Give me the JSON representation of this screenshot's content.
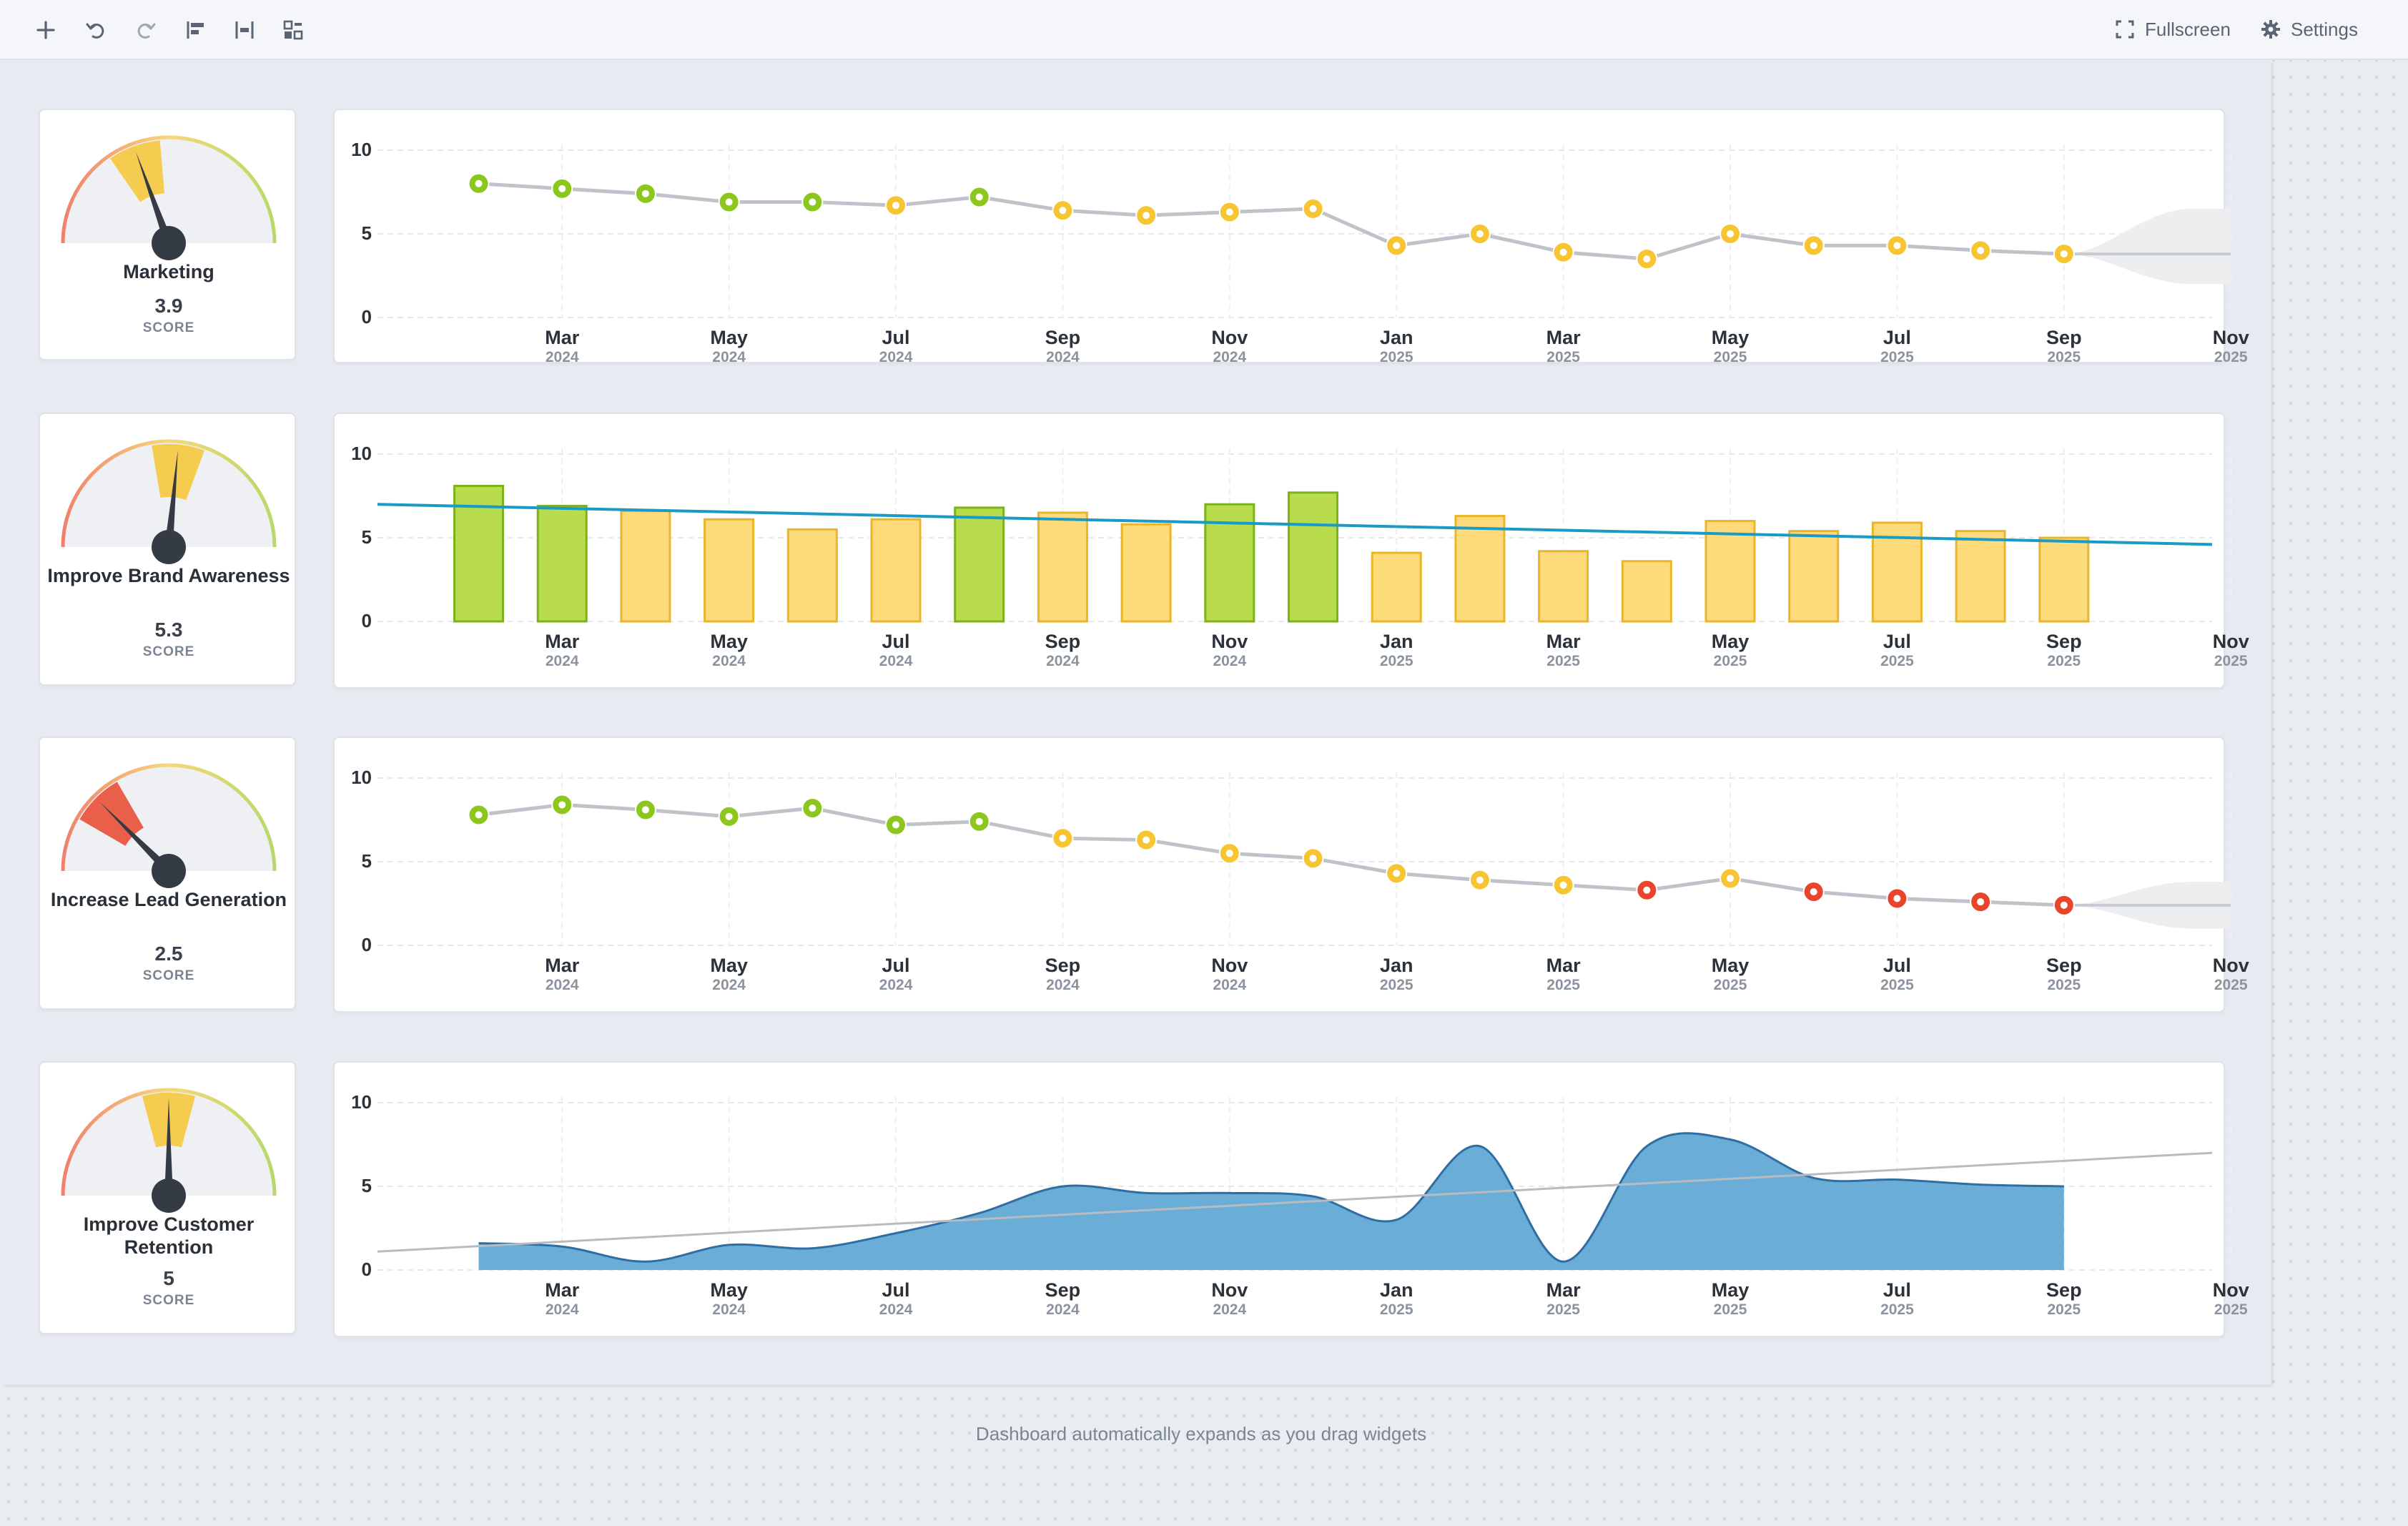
{
  "toolbar": {
    "left_icons": [
      "plus-icon",
      "undo-icon",
      "redo-icon",
      "align-left-icon",
      "distribute-icon",
      "layout-icon"
    ],
    "fullscreen_label": "Fullscreen",
    "settings_label": "Settings"
  },
  "footer": {
    "note": "Dashboard automatically expands as you drag widgets"
  },
  "colors": {
    "green": "#8cc71e",
    "yellow": "#f6c531",
    "red": "#e8452c",
    "trend": "#1a9bc7",
    "area": "#6aaed8"
  },
  "gauges": [
    {
      "name": "Marketing",
      "score": "3.9",
      "score_label": "SCORE"
    },
    {
      "name": "Improve Brand Awareness",
      "score": "5.3",
      "score_label": "SCORE"
    },
    {
      "name": "Increase Lead Generation",
      "score": "2.5",
      "score_label": "SCORE"
    },
    {
      "name": "Improve Customer Retention",
      "score": "5",
      "score_label": "SCORE"
    }
  ],
  "chart_data": [
    {
      "type": "line",
      "title": "",
      "ylim": [
        0,
        10
      ],
      "yticks": [
        0,
        5,
        10
      ],
      "x_ticks": [
        {
          "month": "Mar",
          "year": "2024"
        },
        {
          "month": "May",
          "year": "2024"
        },
        {
          "month": "Jul",
          "year": "2024"
        },
        {
          "month": "Sep",
          "year": "2024"
        },
        {
          "month": "Nov",
          "year": "2024"
        },
        {
          "month": "Jan",
          "year": "2025"
        },
        {
          "month": "Mar",
          "year": "2025"
        },
        {
          "month": "May",
          "year": "2025"
        },
        {
          "month": "Jul",
          "year": "2025"
        },
        {
          "month": "Sep",
          "year": "2025"
        },
        {
          "month": "Nov",
          "year": "2025"
        }
      ],
      "x": [
        "2024-02",
        "2024-03",
        "2024-04",
        "2024-05",
        "2024-06",
        "2024-07",
        "2024-08",
        "2024-09",
        "2024-10",
        "2024-11",
        "2024-12",
        "2025-01",
        "2025-02",
        "2025-03",
        "2025-04",
        "2025-05",
        "2025-06",
        "2025-07",
        "2025-08",
        "2025-09"
      ],
      "values": [
        8.0,
        7.7,
        7.4,
        6.9,
        6.9,
        6.7,
        7.2,
        6.4,
        6.1,
        6.3,
        6.5,
        4.3,
        5.0,
        3.9,
        3.5,
        5.0,
        4.3,
        4.3,
        4.0,
        3.8
      ],
      "status": [
        "green",
        "green",
        "green",
        "green",
        "green",
        "yellow",
        "green",
        "yellow",
        "yellow",
        "yellow",
        "yellow",
        "yellow",
        "yellow",
        "yellow",
        "yellow",
        "yellow",
        "yellow",
        "yellow",
        "yellow",
        "yellow"
      ],
      "forecast": {
        "x": [
          "2025-09",
          "2025-11"
        ],
        "value": 3.8,
        "band": [
          2.0,
          6.5
        ]
      },
      "grid": true
    },
    {
      "type": "bar",
      "title": "",
      "ylim": [
        0,
        10
      ],
      "yticks": [
        0,
        5,
        10
      ],
      "x_ticks": [
        {
          "month": "Mar",
          "year": "2024"
        },
        {
          "month": "May",
          "year": "2024"
        },
        {
          "month": "Jul",
          "year": "2024"
        },
        {
          "month": "Sep",
          "year": "2024"
        },
        {
          "month": "Nov",
          "year": "2024"
        },
        {
          "month": "Jan",
          "year": "2025"
        },
        {
          "month": "Mar",
          "year": "2025"
        },
        {
          "month": "May",
          "year": "2025"
        },
        {
          "month": "Jul",
          "year": "2025"
        },
        {
          "month": "Sep",
          "year": "2025"
        },
        {
          "month": "Nov",
          "year": "2025"
        }
      ],
      "x": [
        "2024-02",
        "2024-03",
        "2024-04",
        "2024-05",
        "2024-06",
        "2024-07",
        "2024-08",
        "2024-09",
        "2024-10",
        "2024-11",
        "2024-12",
        "2025-01",
        "2025-02",
        "2025-03",
        "2025-04",
        "2025-05",
        "2025-06",
        "2025-07",
        "2025-08",
        "2025-09"
      ],
      "values": [
        8.1,
        6.9,
        6.6,
        6.1,
        5.5,
        6.1,
        6.8,
        6.5,
        5.8,
        7.0,
        7.7,
        4.1,
        6.3,
        4.2,
        3.6,
        6.0,
        5.4,
        5.9,
        5.4,
        5.0
      ],
      "status": [
        "green",
        "green",
        "yellow",
        "yellow",
        "yellow",
        "yellow",
        "green",
        "yellow",
        "yellow",
        "green",
        "green",
        "yellow",
        "yellow",
        "yellow",
        "yellow",
        "yellow",
        "yellow",
        "yellow",
        "yellow",
        "yellow"
      ],
      "trendline": {
        "start": 7.0,
        "end": 4.6
      },
      "grid": true
    },
    {
      "type": "line",
      "title": "",
      "ylim": [
        0,
        10
      ],
      "yticks": [
        0,
        5,
        10
      ],
      "x_ticks": [
        {
          "month": "Mar",
          "year": "2024"
        },
        {
          "month": "May",
          "year": "2024"
        },
        {
          "month": "Jul",
          "year": "2024"
        },
        {
          "month": "Sep",
          "year": "2024"
        },
        {
          "month": "Nov",
          "year": "2024"
        },
        {
          "month": "Jan",
          "year": "2025"
        },
        {
          "month": "Mar",
          "year": "2025"
        },
        {
          "month": "May",
          "year": "2025"
        },
        {
          "month": "Jul",
          "year": "2025"
        },
        {
          "month": "Sep",
          "year": "2025"
        },
        {
          "month": "Nov",
          "year": "2025"
        }
      ],
      "x": [
        "2024-02",
        "2024-03",
        "2024-04",
        "2024-05",
        "2024-06",
        "2024-07",
        "2024-08",
        "2024-09",
        "2024-10",
        "2024-11",
        "2024-12",
        "2025-01",
        "2025-02",
        "2025-03",
        "2025-04",
        "2025-05",
        "2025-06",
        "2025-07",
        "2025-08",
        "2025-09"
      ],
      "values": [
        7.8,
        8.4,
        8.1,
        7.7,
        8.2,
        7.2,
        7.4,
        6.4,
        6.3,
        5.5,
        5.2,
        4.3,
        3.9,
        3.6,
        3.3,
        4.0,
        3.2,
        2.8,
        2.6,
        2.4
      ],
      "status": [
        "green",
        "green",
        "green",
        "green",
        "green",
        "green",
        "green",
        "yellow",
        "yellow",
        "yellow",
        "yellow",
        "yellow",
        "yellow",
        "yellow",
        "red",
        "yellow",
        "red",
        "red",
        "red",
        "red"
      ],
      "forecast": {
        "x": [
          "2025-09",
          "2025-11"
        ],
        "value": 2.4,
        "band": [
          1.0,
          3.8
        ]
      },
      "grid": true
    },
    {
      "type": "area",
      "title": "",
      "ylim": [
        0,
        10
      ],
      "yticks": [
        0,
        5,
        10
      ],
      "x_ticks": [
        {
          "month": "Mar",
          "year": "2024"
        },
        {
          "month": "May",
          "year": "2024"
        },
        {
          "month": "Jul",
          "year": "2024"
        },
        {
          "month": "Sep",
          "year": "2024"
        },
        {
          "month": "Nov",
          "year": "2024"
        },
        {
          "month": "Jan",
          "year": "2025"
        },
        {
          "month": "Mar",
          "year": "2025"
        },
        {
          "month": "May",
          "year": "2025"
        },
        {
          "month": "Jul",
          "year": "2025"
        },
        {
          "month": "Sep",
          "year": "2025"
        },
        {
          "month": "Nov",
          "year": "2025"
        }
      ],
      "x": [
        "2024-02",
        "2024-03",
        "2024-04",
        "2024-05",
        "2024-06",
        "2024-07",
        "2024-08",
        "2024-09",
        "2024-10",
        "2024-11",
        "2024-12",
        "2025-01",
        "2025-02",
        "2025-03",
        "2025-04",
        "2025-05",
        "2025-06",
        "2025-07",
        "2025-08",
        "2025-09"
      ],
      "values": [
        1.6,
        1.4,
        0.5,
        1.5,
        1.3,
        2.2,
        3.4,
        5.0,
        4.6,
        4.6,
        4.4,
        3.0,
        7.4,
        0.5,
        7.4,
        7.8,
        5.5,
        5.4,
        5.1,
        5.0
      ],
      "trendline": {
        "start": 1.1,
        "end": 7.0
      },
      "grid": true
    }
  ]
}
